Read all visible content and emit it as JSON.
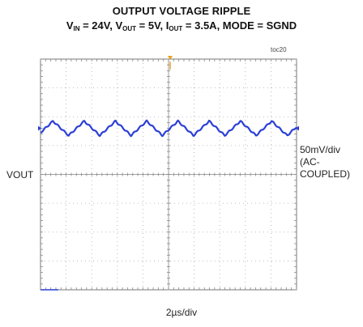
{
  "chart_data": {
    "type": "line",
    "title": "OUTPUT VOLTAGE RIPPLE",
    "subtitle": {
      "vin_label": "V",
      "vin_sub": "IN",
      "vin_value": " = 24V, ",
      "vout_label": "V",
      "vout_sub": "OUT",
      "vout_value": " = 5V, ",
      "iout_label": "I",
      "iout_sub": "OUT",
      "iout_value": " = 3.5A, MODE = SGND"
    },
    "figure_id": "toc20",
    "channel_label": "VOUT",
    "vertical_scale": [
      "50mV/div",
      "(AC-",
      "COUPLED)"
    ],
    "horizontal_scale": "2µs/div",
    "grid": true,
    "divisions": {
      "x": 10,
      "y": 8
    },
    "ripple_waveform": {
      "shape": "triangle",
      "cycles_on_screen": 8.2,
      "peak_to_peak_mV": 25,
      "x_range_us": [
        0,
        20
      ],
      "trace_color": "#2b3fd6"
    },
    "trigger_marker_color": "#e8a020"
  }
}
